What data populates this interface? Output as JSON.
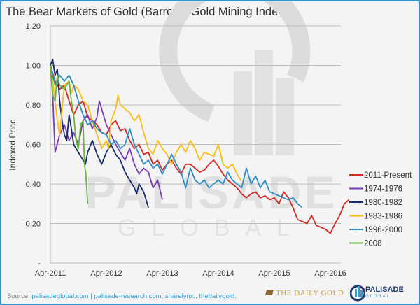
{
  "chart_data": {
    "type": "line",
    "title": "The Bear Markets of Gold (Barron's Gold Mining Index)",
    "xlabel": "",
    "ylabel": "Indexed Price",
    "x_unit": "months since Apr-2011",
    "xlim": [
      0,
      64
    ],
    "ylim": [
      0,
      1.2
    ],
    "y_ticks": [
      "1.20",
      "1.00",
      "0.80",
      "0.60",
      "0.40",
      "0.20",
      "-"
    ],
    "y_tick_values": [
      1.2,
      1.0,
      0.8,
      0.6,
      0.4,
      0.2,
      0
    ],
    "x_ticks": [
      "Apr-2011",
      "Apr-2012",
      "Apr-2013",
      "Apr-2014",
      "Apr-2015",
      "Apr-2016"
    ],
    "x_tick_values": [
      0,
      12,
      24,
      36,
      48,
      60
    ],
    "grid": true,
    "legend_position": "right",
    "series": [
      {
        "name": "2011-Present",
        "color": "#d42a26",
        "points": [
          [
            0,
            1.0
          ],
          [
            1,
            0.92
          ],
          [
            2,
            0.88
          ],
          [
            3,
            0.9
          ],
          [
            4,
            0.82
          ],
          [
            5,
            0.75
          ],
          [
            6,
            0.8
          ],
          [
            7,
            0.82
          ],
          [
            8,
            0.74
          ],
          [
            9,
            0.72
          ],
          [
            10,
            0.7
          ],
          [
            11,
            0.66
          ],
          [
            12,
            0.65
          ],
          [
            13,
            0.7
          ],
          [
            14,
            0.72
          ],
          [
            15,
            0.67
          ],
          [
            16,
            0.68
          ],
          [
            17,
            0.62
          ],
          [
            18,
            0.58
          ],
          [
            19,
            0.6
          ],
          [
            20,
            0.55
          ],
          [
            21,
            0.56
          ],
          [
            22,
            0.5
          ],
          [
            23,
            0.52
          ],
          [
            24,
            0.47
          ],
          [
            25,
            0.5
          ],
          [
            26,
            0.52
          ],
          [
            27,
            0.48
          ],
          [
            28,
            0.45
          ],
          [
            29,
            0.5
          ],
          [
            30,
            0.5
          ],
          [
            31,
            0.48
          ],
          [
            32,
            0.46
          ],
          [
            33,
            0.47
          ],
          [
            34,
            0.5
          ],
          [
            35,
            0.52
          ],
          [
            36,
            0.49
          ],
          [
            37,
            0.45
          ],
          [
            38,
            0.42
          ],
          [
            39,
            0.4
          ],
          [
            40,
            0.38
          ],
          [
            41,
            0.35
          ],
          [
            42,
            0.33
          ],
          [
            43,
            0.35
          ],
          [
            44,
            0.36
          ],
          [
            45,
            0.33
          ],
          [
            46,
            0.34
          ],
          [
            47,
            0.32
          ],
          [
            48,
            0.33
          ],
          [
            49,
            0.3
          ],
          [
            50,
            0.36
          ],
          [
            51,
            0.33
          ],
          [
            52,
            0.28
          ],
          [
            53,
            0.22
          ],
          [
            54,
            0.21
          ],
          [
            55,
            0.2
          ],
          [
            56,
            0.24
          ],
          [
            57,
            0.19
          ],
          [
            58,
            0.18
          ],
          [
            59,
            0.17
          ],
          [
            60,
            0.15
          ],
          [
            61,
            0.2
          ],
          [
            62,
            0.24
          ],
          [
            63,
            0.3
          ],
          [
            64,
            0.32
          ]
        ]
      },
      {
        "name": "1974-1976",
        "color": "#7b3db5",
        "points": [
          [
            0,
            1.0
          ],
          [
            0.5,
            0.85
          ],
          [
            1,
            0.56
          ],
          [
            2,
            0.65
          ],
          [
            3,
            0.7
          ],
          [
            4,
            0.62
          ],
          [
            5,
            0.66
          ],
          [
            6,
            0.6
          ],
          [
            7,
            0.72
          ],
          [
            8,
            0.75
          ],
          [
            9,
            0.68
          ],
          [
            10,
            0.74
          ],
          [
            10.5,
            0.82
          ],
          [
            11,
            0.78
          ],
          [
            12,
            0.7
          ],
          [
            13,
            0.65
          ],
          [
            14,
            0.6
          ],
          [
            15,
            0.56
          ],
          [
            16,
            0.52
          ],
          [
            17,
            0.58
          ],
          [
            18,
            0.5
          ],
          [
            19,
            0.45
          ],
          [
            20,
            0.48
          ],
          [
            21,
            0.46
          ],
          [
            22,
            0.38
          ],
          [
            23,
            0.42
          ],
          [
            24,
            0.32
          ]
        ]
      },
      {
        "name": "1980-1982",
        "color": "#1a2a6c",
        "points": [
          [
            0,
            1.0
          ],
          [
            0.5,
            1.03
          ],
          [
            1,
            0.95
          ],
          [
            1.5,
            0.98
          ],
          [
            2,
            0.82
          ],
          [
            2.5,
            0.72
          ],
          [
            3,
            0.65
          ],
          [
            3.5,
            0.62
          ],
          [
            4,
            0.75
          ],
          [
            4.5,
            0.68
          ],
          [
            5,
            0.6
          ],
          [
            6,
            0.56
          ],
          [
            7,
            0.52
          ],
          [
            7.5,
            0.5
          ],
          [
            8,
            0.56
          ],
          [
            9,
            0.62
          ],
          [
            10,
            0.55
          ],
          [
            11,
            0.5
          ],
          [
            12,
            0.56
          ],
          [
            13,
            0.6
          ],
          [
            14,
            0.55
          ],
          [
            15,
            0.52
          ],
          [
            16,
            0.46
          ],
          [
            17,
            0.42
          ],
          [
            18,
            0.38
          ],
          [
            18.5,
            0.35
          ],
          [
            19,
            0.4
          ],
          [
            20,
            0.36
          ],
          [
            20.5,
            0.32
          ],
          [
            21,
            0.28
          ]
        ]
      },
      {
        "name": "1983-1986",
        "color": "#fbbd16",
        "points": [
          [
            0,
            1.0
          ],
          [
            0.7,
            0.88
          ],
          [
            1.5,
            0.72
          ],
          [
            2,
            0.65
          ],
          [
            2.5,
            0.78
          ],
          [
            3,
            0.9
          ],
          [
            4,
            0.92
          ],
          [
            4.5,
            0.86
          ],
          [
            5,
            0.9
          ],
          [
            6,
            0.88
          ],
          [
            7,
            0.82
          ],
          [
            8,
            0.8
          ],
          [
            9,
            0.72
          ],
          [
            10,
            0.65
          ],
          [
            11,
            0.58
          ],
          [
            12,
            0.62
          ],
          [
            12.5,
            0.58
          ],
          [
            13,
            0.72
          ],
          [
            14,
            0.78
          ],
          [
            14.5,
            0.85
          ],
          [
            15,
            0.8
          ],
          [
            16,
            0.78
          ],
          [
            17,
            0.76
          ],
          [
            18,
            0.72
          ],
          [
            19,
            0.75
          ],
          [
            20,
            0.66
          ],
          [
            21,
            0.58
          ],
          [
            22,
            0.55
          ],
          [
            23,
            0.62
          ],
          [
            24,
            0.58
          ],
          [
            25,
            0.55
          ],
          [
            26,
            0.5
          ],
          [
            27,
            0.56
          ],
          [
            28,
            0.6
          ],
          [
            29,
            0.56
          ],
          [
            30,
            0.62
          ],
          [
            31,
            0.58
          ],
          [
            32,
            0.52
          ],
          [
            33,
            0.56
          ],
          [
            34,
            0.55
          ],
          [
            35,
            0.54
          ],
          [
            36,
            0.6
          ],
          [
            37,
            0.5
          ],
          [
            38,
            0.48
          ],
          [
            39,
            0.5
          ],
          [
            40,
            0.45
          ],
          [
            41,
            0.41
          ]
        ]
      },
      {
        "name": "1996-2000",
        "color": "#2e8fc6",
        "points": [
          [
            0,
            1.0
          ],
          [
            1,
            0.9
          ],
          [
            2,
            0.95
          ],
          [
            3,
            0.92
          ],
          [
            4,
            0.95
          ],
          [
            5,
            0.9
          ],
          [
            6,
            0.82
          ],
          [
            7,
            0.75
          ],
          [
            8,
            0.7
          ],
          [
            9,
            0.72
          ],
          [
            10,
            0.68
          ],
          [
            11,
            0.66
          ],
          [
            12,
            0.65
          ],
          [
            13,
            0.6
          ],
          [
            14,
            0.62
          ],
          [
            15,
            0.58
          ],
          [
            16,
            0.6
          ],
          [
            17,
            0.68
          ],
          [
            18,
            0.6
          ],
          [
            19,
            0.55
          ],
          [
            20,
            0.5
          ],
          [
            21,
            0.52
          ],
          [
            22,
            0.48
          ],
          [
            23,
            0.5
          ],
          [
            24,
            0.45
          ],
          [
            25,
            0.5
          ],
          [
            26,
            0.55
          ],
          [
            27,
            0.5
          ],
          [
            28,
            0.46
          ],
          [
            29,
            0.38
          ],
          [
            30,
            0.48
          ],
          [
            31,
            0.42
          ],
          [
            32,
            0.4
          ],
          [
            33,
            0.42
          ],
          [
            34,
            0.38
          ],
          [
            35,
            0.4
          ],
          [
            36,
            0.42
          ],
          [
            37,
            0.4
          ],
          [
            38,
            0.46
          ],
          [
            39,
            0.42
          ],
          [
            40,
            0.4
          ],
          [
            41,
            0.38
          ],
          [
            42,
            0.48
          ],
          [
            43,
            0.4
          ],
          [
            44,
            0.44
          ],
          [
            45,
            0.38
          ],
          [
            46,
            0.42
          ],
          [
            47,
            0.36
          ],
          [
            48,
            0.35
          ],
          [
            49,
            0.34
          ],
          [
            50,
            0.33
          ],
          [
            51,
            0.32
          ],
          [
            52,
            0.33
          ],
          [
            53,
            0.3
          ],
          [
            54,
            0.28
          ]
        ]
      },
      {
        "name": "2008",
        "color": "#6ab43e",
        "points": [
          [
            0,
            1.0
          ],
          [
            0.5,
            0.85
          ],
          [
            1,
            0.82
          ],
          [
            1.5,
            0.95
          ],
          [
            2,
            0.9
          ],
          [
            3,
            0.88
          ],
          [
            4,
            0.92
          ],
          [
            4.5,
            0.82
          ],
          [
            5,
            0.75
          ],
          [
            5.5,
            0.62
          ],
          [
            6,
            0.58
          ],
          [
            6.5,
            0.7
          ],
          [
            7,
            0.72
          ],
          [
            7.3,
            0.5
          ],
          [
            7.6,
            0.45
          ],
          [
            8,
            0.3
          ]
        ]
      }
    ]
  },
  "footer": {
    "source_label": "Source: ",
    "source_links": "palisadeglobal.com  | palisade-research.com, sharelynx., thedailygold.",
    "daily_gold_logo": "THE DAILY GOLD",
    "palisade_logo_1": "PALISADE",
    "palisade_logo_2": "GLOBAL",
    "watermark_1": "PALISADE",
    "watermark_2": "GLOBAL"
  }
}
